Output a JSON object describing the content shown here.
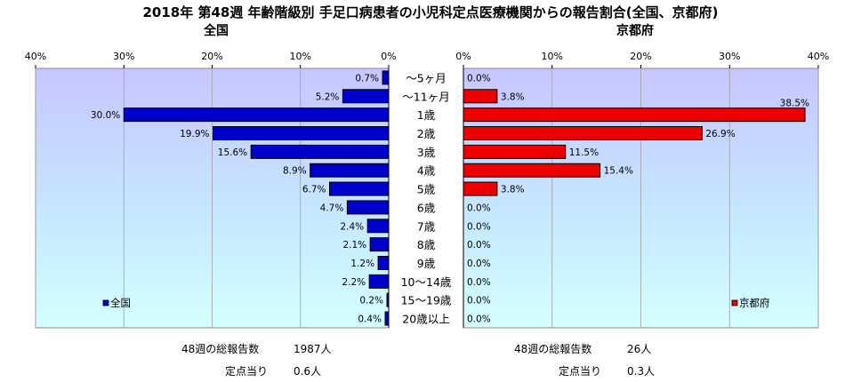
{
  "title": "2018年 第48週 年齢階級別 手足口病患者の小児科定点医療機関からの報告割合(全国、京都府)",
  "chart_data": [
    {
      "type": "bar",
      "orientation": "horizontal",
      "direction": "right-to-left",
      "title": "全国",
      "categories": [
        "～5ヶ月",
        "～11ヶ月",
        "1歳",
        "2歳",
        "3歳",
        "4歳",
        "5歳",
        "6歳",
        "7歳",
        "8歳",
        "9歳",
        "10～14歳",
        "15～19歳",
        "20歳以上"
      ],
      "series": [
        {
          "name": "全国",
          "color": "#0000cc",
          "values": [
            0.7,
            5.2,
            30.0,
            19.9,
            15.6,
            8.9,
            6.7,
            4.7,
            2.4,
            2.1,
            1.2,
            2.2,
            0.2,
            0.4
          ],
          "labels": [
            "0.7%",
            "5.2%",
            "30.0%",
            "19.9%",
            "15.6%",
            "8.9%",
            "6.7%",
            "4.7%",
            "2.4%",
            "2.1%",
            "1.2%",
            "2.2%",
            "0.2%",
            "0.4%"
          ]
        }
      ],
      "xlim": [
        0,
        40
      ],
      "ticks": [
        "40%",
        "30%",
        "20%",
        "10%",
        "0%"
      ],
      "legend": "bottom-left",
      "grid": true
    },
    {
      "type": "bar",
      "orientation": "horizontal",
      "direction": "left-to-right",
      "title": "京都府",
      "categories": [
        "～5ヶ月",
        "～11ヶ月",
        "1歳",
        "2歳",
        "3歳",
        "4歳",
        "5歳",
        "6歳",
        "7歳",
        "8歳",
        "9歳",
        "10～14歳",
        "15～19歳",
        "20歳以上"
      ],
      "series": [
        {
          "name": "京都府",
          "color": "#ee0000",
          "values": [
            0.0,
            3.8,
            38.5,
            26.9,
            11.5,
            15.4,
            3.8,
            0.0,
            0.0,
            0.0,
            0.0,
            0.0,
            0.0,
            0.0
          ],
          "labels": [
            "0.0%",
            "3.8%",
            "38.5%",
            "26.9%",
            "11.5%",
            "15.4%",
            "3.8%",
            "0.0%",
            "0.0%",
            "0.0%",
            "0.0%",
            "0.0%",
            "0.0%",
            "0.0%"
          ]
        }
      ],
      "xlim": [
        0,
        40
      ],
      "ticks": [
        "0%",
        "10%",
        "20%",
        "30%",
        "40%"
      ],
      "legend": "bottom-right",
      "grid": true
    }
  ],
  "footer": {
    "national": {
      "total_label": "48週の総報告数",
      "total_value": "1987人",
      "per_site_label": "定点当り",
      "per_site_value": "0.6人"
    },
    "kyoto": {
      "total_label": "48週の総報告数",
      "total_value": "26人",
      "per_site_label": "定点当り",
      "per_site_value": "0.3人"
    }
  }
}
